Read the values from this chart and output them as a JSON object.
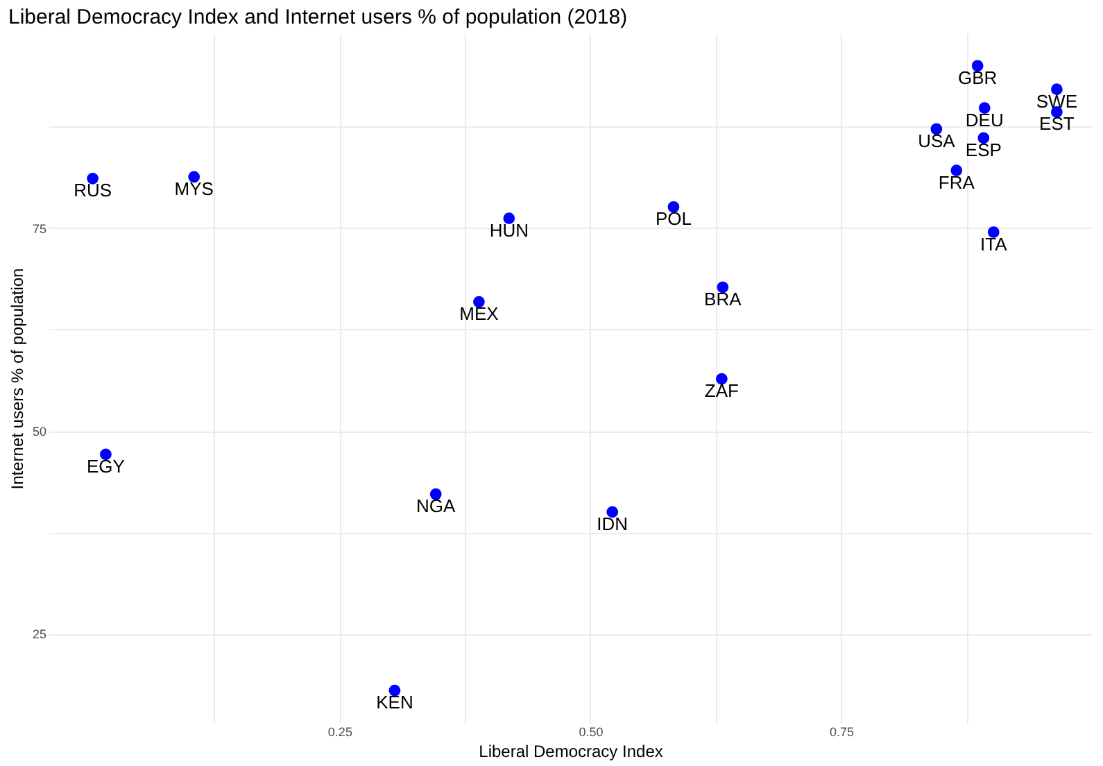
{
  "chart_data": {
    "type": "scatter",
    "title": "Liberal Democracy Index and Internet users % of population (2018)",
    "xlabel": "Liberal Democracy Index",
    "ylabel": "Internet users % of population",
    "x": [
      0.004,
      0.105,
      0.017,
      0.305,
      0.346,
      0.389,
      0.419,
      0.522,
      0.583,
      0.632,
      0.631,
      0.845,
      0.892,
      0.865,
      0.886,
      0.893,
      0.902,
      0.965,
      0.965
    ],
    "series": [
      {
        "color": "#0000ff",
        "values": [
          81.1,
          81.3,
          47.1,
          18.0,
          42.2,
          65.9,
          76.2,
          40.0,
          77.6,
          67.7,
          56.4,
          87.2,
          86.1,
          82.1,
          95.0,
          89.8,
          74.5,
          92.1,
          89.3
        ]
      }
    ],
    "annotations": [
      {
        "text": "RUS",
        "x": 0.004,
        "y": 81.1
      },
      {
        "text": "MYS",
        "x": 0.105,
        "y": 81.3
      },
      {
        "text": "EGY",
        "x": 0.017,
        "y": 47.1
      },
      {
        "text": "KEN",
        "x": 0.305,
        "y": 18.0
      },
      {
        "text": "NGA",
        "x": 0.346,
        "y": 42.2
      },
      {
        "text": "MEX",
        "x": 0.389,
        "y": 65.9
      },
      {
        "text": "HUN",
        "x": 0.419,
        "y": 76.2
      },
      {
        "text": "IDN",
        "x": 0.522,
        "y": 40.0
      },
      {
        "text": "POL",
        "x": 0.583,
        "y": 77.6
      },
      {
        "text": "BRA",
        "x": 0.632,
        "y": 67.7
      },
      {
        "text": "ZAF",
        "x": 0.631,
        "y": 56.4
      },
      {
        "text": "USA",
        "x": 0.845,
        "y": 87.2
      },
      {
        "text": "ESP",
        "x": 0.892,
        "y": 86.1
      },
      {
        "text": "FRA",
        "x": 0.865,
        "y": 82.1
      },
      {
        "text": "GBR",
        "x": 0.886,
        "y": 95.0
      },
      {
        "text": "DEU",
        "x": 0.893,
        "y": 89.8
      },
      {
        "text": "ITA",
        "x": 0.902,
        "y": 74.5
      },
      {
        "text": "SWE",
        "x": 0.965,
        "y": 92.1
      },
      {
        "text": "EST",
        "x": 0.965,
        "y": 89.3
      }
    ],
    "xlim": [
      -0.04,
      1.0
    ],
    "ylim": [
      14,
      99
    ],
    "xticks": [
      {
        "value": 0.125,
        "label": null
      },
      {
        "value": 0.25,
        "label": "0.25"
      },
      {
        "value": 0.375,
        "label": null
      },
      {
        "value": 0.5,
        "label": "0.50"
      },
      {
        "value": 0.625,
        "label": null
      },
      {
        "value": 0.75,
        "label": "0.75"
      },
      {
        "value": 0.875,
        "label": null
      }
    ],
    "yticks": [
      25,
      {
        "value": 37.5,
        "label": null
      },
      50,
      {
        "value": 62.5,
        "label": null
      },
      75,
      {
        "value": 87.5,
        "label": null
      }
    ],
    "grid": true,
    "marker": "circle"
  }
}
